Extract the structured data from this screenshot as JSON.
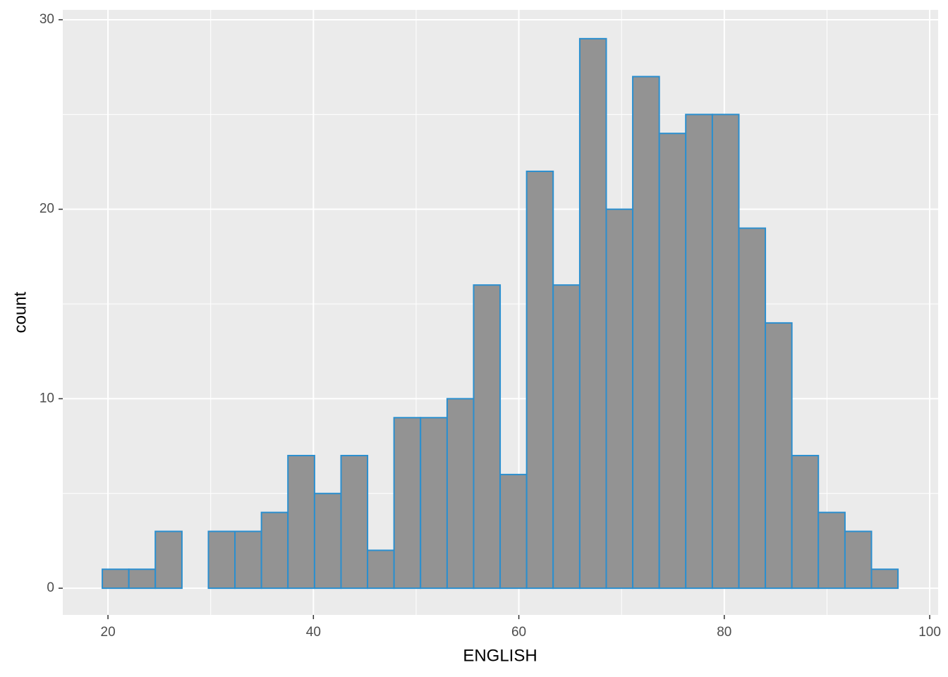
{
  "chart_data": {
    "type": "histogram",
    "x_label": "ENGLISH",
    "y_label": "count",
    "bins": [
      19.45,
      22.03,
      24.61,
      27.2,
      29.78,
      32.36,
      34.94,
      37.52,
      40.11,
      42.69,
      45.27,
      47.85,
      50.43,
      53.02,
      55.6,
      58.18,
      60.76,
      63.34,
      65.93,
      68.51,
      71.09,
      73.67,
      76.25,
      78.84,
      81.42,
      84.0,
      86.58,
      89.16,
      91.75,
      94.33,
      96.91
    ],
    "values": [
      1,
      1,
      3,
      0,
      3,
      3,
      4,
      7,
      5,
      7,
      2,
      9,
      9,
      10,
      16,
      6,
      22,
      16,
      29,
      20,
      27,
      24,
      25,
      25,
      19,
      14,
      7,
      4,
      3,
      1
    ],
    "color": "#939393",
    "edge_color": "#2b8fcf",
    "xlim": [
      15.6,
      100.82
    ],
    "ylim": [
      -1.41,
      30.52
    ],
    "xticks": [
      20,
      40,
      60,
      80,
      100
    ],
    "yticks": [
      0,
      10,
      20,
      30
    ],
    "grid": true
  }
}
